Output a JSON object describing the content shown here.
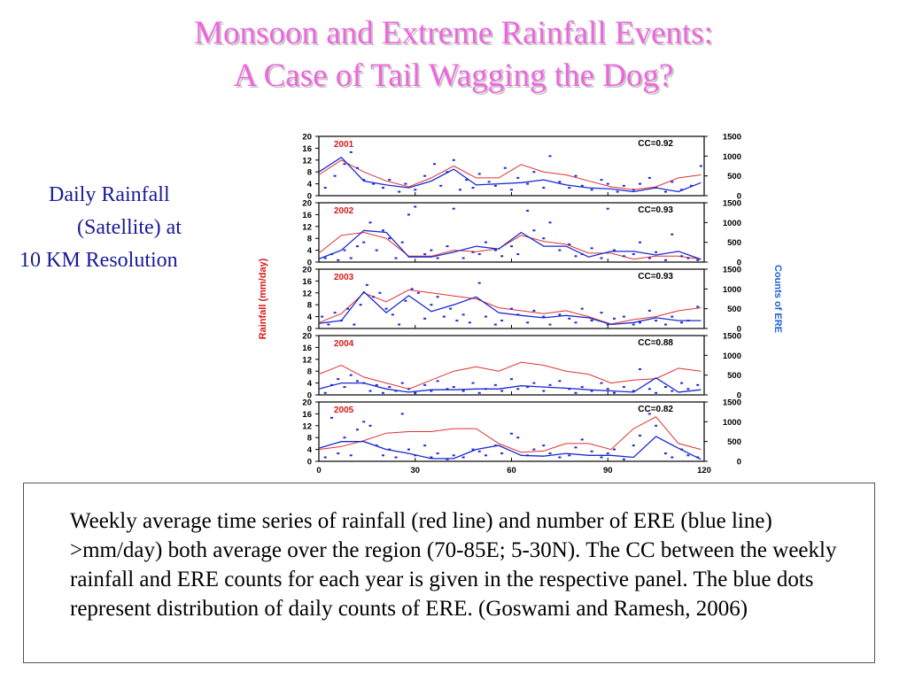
{
  "slide": {
    "title_line1": "Monsoon and Extreme Rainfall Events:",
    "title_line2": "A Case of Tail Wagging the Dog?"
  },
  "side_label": {
    "line1": "Daily Rainfall",
    "line2": "(Satellite) at",
    "line3": "10 KM Resolution"
  },
  "caption": {
    "text": "Weekly average time series of rainfall (red line) and number of ERE (blue line) >mm/day) both average over the region (70-85E; 5-30N). The CC between the weekly rainfall and ERE counts for each year is given in the respective panel. The blue dots represent distribution of daily counts of ERE. (Goswami and Ramesh, 2006)"
  },
  "colors": {
    "title": "#ee66dd",
    "label": "#1a1a99",
    "rainfall_line": "#e03030",
    "ere_line": "#1a2ad0",
    "ere_dots": "#1a2ad0",
    "year_label": "#d81818",
    "left_axis_label": "#d81818",
    "right_axis_label": "#2060d0"
  },
  "chart_data": {
    "type": "line",
    "ylabel_left": "Rainfall (mm/day)",
    "ylabel_right": "Counts of ERE",
    "xlim": [
      0,
      120
    ],
    "x_ticks": [
      "0",
      "30",
      "60",
      "90",
      "120"
    ],
    "ylim_left": [
      0,
      20
    ],
    "ylim_right": [
      0,
      1500
    ],
    "y_left_ticks": [
      "0",
      "4",
      "8",
      "12",
      "16",
      "20"
    ],
    "y_right_ticks": [
      "0",
      "500",
      "1000",
      "1500"
    ],
    "panels": [
      {
        "year": "2001",
        "cc": "CC=0.92",
        "rainfall": {
          "x": [
            0,
            7,
            14,
            21,
            28,
            35,
            42,
            49,
            56,
            63,
            70,
            77,
            84,
            91,
            98,
            105,
            112,
            119
          ],
          "y": [
            7,
            12,
            8,
            5,
            3,
            6,
            10,
            6,
            6,
            10.5,
            8,
            7,
            5,
            3,
            2,
            3,
            6,
            7
          ]
        },
        "ere": {
          "x": [
            0,
            7,
            14,
            21,
            28,
            35,
            42,
            49,
            56,
            63,
            70,
            77,
            84,
            91,
            98,
            105,
            112,
            119
          ],
          "y": [
            600,
            970,
            370,
            270,
            200,
            370,
            670,
            270,
            300,
            330,
            400,
            270,
            200,
            170,
            100,
            200,
            100,
            330
          ]
        },
        "dots": {
          "x": [
            2,
            5,
            8,
            10,
            12,
            14,
            17,
            20,
            22,
            25,
            27,
            30,
            33,
            36,
            38,
            40,
            42,
            44,
            46,
            48,
            50,
            53,
            55,
            58,
            60,
            62,
            65,
            67,
            70,
            72,
            75,
            78,
            80,
            82,
            85,
            88,
            90,
            93,
            95,
            98,
            100,
            103,
            105,
            108,
            110,
            113,
            116,
            119
          ],
          "y": [
            200,
            500,
            800,
            1100,
            700,
            400,
            300,
            200,
            400,
            100,
            300,
            150,
            500,
            800,
            250,
            600,
            900,
            150,
            400,
            200,
            550,
            350,
            250,
            700,
            150,
            450,
            300,
            600,
            200,
            1000,
            350,
            200,
            500,
            250,
            150,
            400,
            300,
            100,
            250,
            150,
            300,
            450,
            200,
            100,
            350,
            150,
            250,
            750
          ]
        }
      },
      {
        "year": "2002",
        "cc": "CC=0.93",
        "rainfall": {
          "x": [
            0,
            7,
            14,
            21,
            28,
            35,
            42,
            49,
            56,
            63,
            70,
            77,
            84,
            91,
            98,
            105,
            112,
            119
          ],
          "y": [
            3,
            9,
            10,
            8,
            2,
            2,
            4,
            3.5,
            4.5,
            9,
            7,
            6,
            3,
            3,
            1,
            2,
            2,
            1
          ]
        },
        "ere": {
          "x": [
            0,
            7,
            14,
            21,
            28,
            35,
            42,
            49,
            56,
            63,
            70,
            77,
            84,
            91,
            98,
            105,
            112,
            119
          ],
          "y": [
            80,
            300,
            800,
            750,
            130,
            130,
            250,
            400,
            330,
            750,
            400,
            400,
            130,
            270,
            270,
            180,
            270,
            70
          ]
        },
        "dots": {
          "x": [
            2,
            4,
            6,
            8,
            10,
            12,
            14,
            16,
            18,
            20,
            22,
            24,
            26,
            28,
            30,
            33,
            35,
            37,
            40,
            42,
            45,
            48,
            50,
            52,
            55,
            57,
            60,
            62,
            65,
            67,
            70,
            72,
            75,
            78,
            80,
            82,
            85,
            88,
            90,
            92,
            95,
            98,
            100,
            103,
            105,
            108,
            110,
            113,
            115,
            118
          ],
          "y": [
            100,
            200,
            50,
            300,
            100,
            400,
            500,
            1000,
            300,
            800,
            600,
            100,
            500,
            1200,
            1400,
            200,
            300,
            100,
            400,
            1350,
            100,
            250,
            200,
            500,
            300,
            150,
            400,
            200,
            1300,
            800,
            600,
            1000,
            300,
            450,
            150,
            200,
            350,
            100,
            1350,
            300,
            150,
            200,
            500,
            100,
            250,
            50,
            700,
            150,
            100,
            50
          ]
        }
      },
      {
        "year": "2003",
        "cc": "CC=0.93",
        "rainfall": {
          "x": [
            0,
            7,
            14,
            21,
            28,
            35,
            42,
            49,
            56,
            63,
            70,
            77,
            84,
            91,
            98,
            105,
            112,
            119
          ],
          "y": [
            2,
            5,
            12,
            9,
            13,
            12,
            11,
            10,
            7,
            6,
            5,
            6,
            4,
            1.5,
            3,
            4,
            6,
            7
          ]
        },
        "ere": {
          "x": [
            0,
            7,
            14,
            21,
            28,
            35,
            42,
            49,
            56,
            63,
            70,
            77,
            84,
            91,
            98,
            105,
            112,
            119
          ],
          "y": [
            130,
            200,
            930,
            400,
            830,
            430,
            600,
            800,
            400,
            330,
            270,
            330,
            270,
            100,
            150,
            270,
            200,
            200
          ]
        },
        "dots": {
          "x": [
            1,
            3,
            5,
            7,
            9,
            11,
            13,
            15,
            17,
            19,
            21,
            23,
            25,
            27,
            29,
            31,
            33,
            35,
            37,
            39,
            41,
            43,
            45,
            47,
            50,
            52,
            55,
            57,
            60,
            62,
            65,
            67,
            70,
            72,
            75,
            78,
            80,
            82,
            85,
            88,
            90,
            92,
            95,
            98,
            100,
            103,
            105,
            108,
            110,
            113,
            115,
            118
          ],
          "y": [
            300,
            100,
            400,
            200,
            500,
            100,
            600,
            1100,
            800,
            900,
            500,
            350,
            100,
            700,
            1000,
            900,
            250,
            600,
            800,
            300,
            500,
            200,
            350,
            150,
            1150,
            300,
            100,
            200,
            500,
            350,
            150,
            450,
            300,
            100,
            350,
            250,
            150,
            500,
            200,
            400,
            100,
            250,
            300,
            100,
            150,
            450,
            200,
            100,
            300,
            150,
            200,
            550
          ]
        }
      },
      {
        "year": "2004",
        "cc": "CC=0.88",
        "rainfall": {
          "x": [
            0,
            7,
            14,
            21,
            28,
            35,
            42,
            49,
            56,
            63,
            70,
            77,
            84,
            91,
            98,
            105,
            112,
            119
          ],
          "y": [
            7,
            10,
            6,
            4,
            2,
            5,
            8,
            9.5,
            8,
            11,
            10,
            8,
            7,
            4,
            5,
            5.5,
            9,
            8
          ]
        },
        "ere": {
          "x": [
            0,
            7,
            14,
            21,
            28,
            35,
            42,
            49,
            56,
            63,
            70,
            77,
            84,
            91,
            98,
            105,
            112,
            119
          ],
          "y": [
            150,
            300,
            300,
            150,
            70,
            130,
            130,
            150,
            150,
            230,
            200,
            170,
            130,
            100,
            70,
            430,
            70,
            130
          ]
        },
        "dots": {
          "x": [
            2,
            4,
            6,
            8,
            10,
            12,
            14,
            16,
            18,
            20,
            22,
            24,
            26,
            28,
            30,
            33,
            35,
            37,
            40,
            42,
            45,
            48,
            50,
            52,
            55,
            57,
            60,
            62,
            65,
            67,
            70,
            72,
            75,
            78,
            80,
            82,
            85,
            88,
            90,
            92,
            95,
            98,
            100,
            103,
            105,
            108,
            110,
            113,
            115,
            118
          ],
          "y": [
            50,
            250,
            400,
            200,
            500,
            350,
            300,
            100,
            250,
            50,
            200,
            100,
            300,
            150,
            50,
            250,
            100,
            350,
            150,
            200,
            100,
            300,
            50,
            150,
            250,
            100,
            400,
            150,
            200,
            300,
            100,
            250,
            350,
            150,
            50,
            200,
            100,
            300,
            150,
            50,
            200,
            100,
            650,
            150,
            50,
            200,
            100,
            300,
            150,
            250
          ]
        }
      },
      {
        "year": "2005",
        "cc": "CC=0.82",
        "rainfall": {
          "x": [
            0,
            7,
            14,
            21,
            28,
            35,
            42,
            49,
            56,
            63,
            70,
            77,
            84,
            91,
            98,
            105,
            112,
            119
          ],
          "y": [
            4,
            5,
            7,
            9.5,
            10,
            10,
            11,
            11,
            6,
            3,
            3.5,
            6,
            6,
            4,
            11,
            15,
            6,
            4
          ]
        },
        "ere": {
          "x": [
            0,
            7,
            14,
            21,
            28,
            35,
            42,
            49,
            56,
            63,
            70,
            77,
            84,
            91,
            98,
            105,
            112,
            119
          ],
          "y": [
            330,
            500,
            500,
            300,
            200,
            70,
            70,
            300,
            400,
            150,
            130,
            200,
            150,
            150,
            100,
            630,
            330,
            50
          ]
        },
        "dots": {
          "x": [
            2,
            4,
            6,
            8,
            10,
            12,
            14,
            16,
            18,
            20,
            22,
            24,
            26,
            28,
            30,
            33,
            35,
            37,
            40,
            42,
            45,
            48,
            50,
            52,
            55,
            57,
            60,
            62,
            65,
            67,
            70,
            72,
            75,
            78,
            80,
            82,
            85,
            88,
            90,
            92,
            95,
            98,
            100,
            103,
            105,
            108,
            110,
            113,
            115,
            118
          ],
          "y": [
            100,
            1100,
            200,
            600,
            150,
            800,
            1000,
            900,
            400,
            150,
            300,
            100,
            1200,
            300,
            150,
            400,
            100,
            200,
            50,
            150,
            100,
            300,
            250,
            150,
            400,
            200,
            700,
            600,
            150,
            300,
            400,
            200,
            100,
            150,
            350,
            550,
            250,
            100,
            200,
            300,
            50,
            400,
            650,
            1200,
            900,
            200,
            100,
            300,
            150,
            100
          ]
        }
      }
    ]
  }
}
